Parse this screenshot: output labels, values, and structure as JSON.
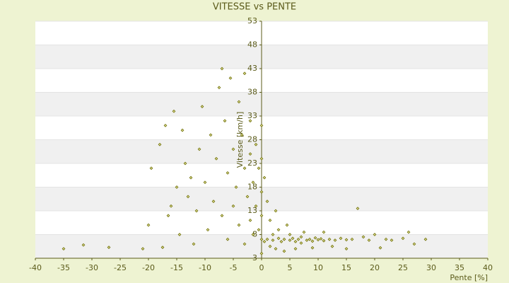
{
  "chart_data": {
    "type": "scatter",
    "title": "VITESSE vs PENTE",
    "x_label": "Pente [%]",
    "y_label": "Vitesse [km/h]",
    "color": "#6b6b00",
    "grid": true,
    "xlim": [
      -40,
      40
    ],
    "xticks": [
      -40,
      -35,
      -30,
      -25,
      -20,
      -15,
      -10,
      -5,
      0,
      5,
      10,
      15,
      20,
      25,
      30,
      35,
      40
    ],
    "ylim": [
      3,
      53
    ],
    "yticks": [
      3,
      8,
      13,
      18,
      23,
      28,
      33,
      38,
      43,
      48,
      53
    ],
    "x": [
      -35,
      -31.5,
      -27,
      -21,
      -20,
      -19.5,
      -18,
      -17.5,
      -17,
      -16.5,
      -16,
      -15.5,
      -15,
      -14.5,
      -14,
      -13.5,
      -13,
      -12.5,
      -12,
      -11.5,
      -11,
      -10.5,
      -10,
      -9.5,
      -9,
      -8.5,
      -8,
      -7.5,
      -7,
      -7,
      -6.5,
      -6,
      -6,
      -5.5,
      -5,
      -5,
      -4.5,
      -4,
      -4,
      -3.5,
      -3,
      -3,
      -3,
      -2.5,
      -2,
      -2,
      -2,
      -1.5,
      -1.5,
      -1,
      -1,
      -0.5,
      -0.5,
      0,
      0,
      0,
      0,
      0,
      0,
      0.5,
      0.5,
      1,
      1,
      1.5,
      1.5,
      2,
      2,
      2.5,
      2.5,
      3,
      3,
      3.5,
      4,
      4,
      4.5,
      5,
      5,
      5.5,
      6,
      6,
      6.5,
      7,
      7,
      7.5,
      8,
      8.5,
      9,
      9,
      9.5,
      10,
      10.5,
      11,
      11,
      12,
      12.5,
      13,
      14,
      15,
      15,
      16,
      17,
      18,
      19,
      20,
      21,
      22,
      23,
      25,
      26,
      27,
      29
    ],
    "values": [
      5,
      5.8,
      5.3,
      5,
      10,
      22,
      27,
      5.3,
      31,
      12,
      14,
      34,
      18,
      8,
      30,
      23,
      16,
      20,
      6,
      13,
      26,
      35,
      19,
      9,
      29,
      15,
      24,
      39,
      43,
      12,
      32,
      21,
      7,
      41,
      26,
      14,
      18,
      36,
      10,
      29,
      42,
      22,
      6,
      16,
      32,
      25,
      11,
      19,
      8,
      27,
      14,
      22,
      9,
      31,
      24,
      17,
      12,
      7,
      4,
      20,
      6.5,
      15,
      7,
      11,
      5.5,
      8,
      6.8,
      13,
      5,
      7.2,
      9,
      6.5,
      7,
      4.5,
      10,
      6.8,
      8,
      7.2,
      6.5,
      5,
      7,
      7.5,
      6.2,
      8.5,
      6.8,
      7,
      6.6,
      5.2,
      7.3,
      6.9,
      7.1,
      6.7,
      8.5,
      7,
      5.5,
      6.8,
      7.2,
      6.9,
      5,
      7,
      13.5,
      7.5,
      6.8,
      8,
      5.2,
      7,
      6.8,
      7.2,
      8.5,
      6,
      7
    ]
  }
}
